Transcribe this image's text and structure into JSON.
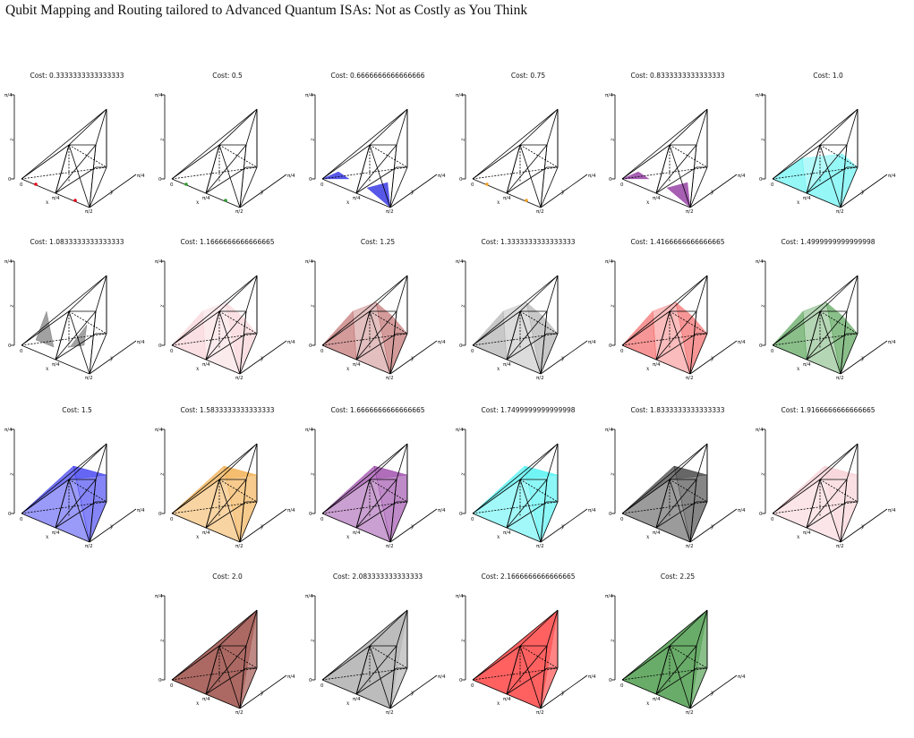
{
  "paper": {
    "title": "Qubit Mapping and Routing tailored to Advanced Quantum ISAs: Not as Costly as You Think"
  },
  "axis_labels": {
    "z_top": "π/4",
    "z_zero": "0",
    "x_origin": "0",
    "x_mid": "π/4",
    "x_end": "π/2",
    "y_end": "π/4",
    "x_name": "x",
    "y_name": "y",
    "z_name": "z"
  },
  "chart_data": {
    "type": "3d-polytope-grid",
    "panels": [
      {
        "title": "Cost: 0.3333333333333333",
        "cost": 0.3333333333333333,
        "color": "#e8001a",
        "shape": "points-red"
      },
      {
        "title": "Cost: 0.5",
        "cost": 0.5,
        "color": "#2e9a2e",
        "shape": "points-green"
      },
      {
        "title": "Cost: 0.6666666666666666",
        "cost": 0.6666666666666666,
        "color": "#2020e0",
        "shape": "base-triangles"
      },
      {
        "title": "Cost: 0.75",
        "cost": 0.75,
        "color": "#f0a020",
        "shape": "points-orange"
      },
      {
        "title": "Cost: 0.8333333333333333",
        "cost": 0.8333333333333333,
        "color": "#8a2a9a",
        "shape": "base-triangles"
      },
      {
        "title": "Cost: 1.0",
        "cost": 1.0,
        "color": "#40f0f0",
        "shape": "tall-wedges"
      },
      {
        "title": "Cost: 1.0833333333333333",
        "cost": 1.0833333333333333,
        "color": "#444444",
        "shape": "slivers"
      },
      {
        "title": "Cost: 1.1666666666666665",
        "cost": 1.1666666666666665,
        "color": "#f6c6cc",
        "shape": "wide-wedges"
      },
      {
        "title": "Cost: 1.25",
        "cost": 1.25,
        "color": "#b04848",
        "shape": "wide-wedges"
      },
      {
        "title": "Cost: 1.3333333333333333",
        "cost": 1.3333333333333333,
        "color": "#9a9a9a",
        "shape": "wide-wedges"
      },
      {
        "title": "Cost: 1.4166666666666665",
        "cost": 1.4166666666666665,
        "color": "#f04040",
        "shape": "wide-wedges"
      },
      {
        "title": "Cost: 1.4999999999999998",
        "cost": 1.4999999999999998,
        "color": "#2a8a2a",
        "shape": "wide-wedges"
      },
      {
        "title": "Cost: 1.5",
        "cost": 1.5,
        "color": "#2020f0",
        "shape": "solid"
      },
      {
        "title": "Cost: 1.5833333333333333",
        "cost": 1.5833333333333333,
        "color": "#f0a030",
        "shape": "solid"
      },
      {
        "title": "Cost: 1.6666666666666665",
        "cost": 1.6666666666666665,
        "color": "#8a2a9a",
        "shape": "solid"
      },
      {
        "title": "Cost: 1.7499999999999998",
        "cost": 1.7499999999999998,
        "color": "#30f0f0",
        "shape": "solid"
      },
      {
        "title": "Cost: 1.8333333333333333",
        "cost": 1.8333333333333333,
        "color": "#222222",
        "shape": "solid"
      },
      {
        "title": "Cost: 1.9166666666666665",
        "cost": 1.9166666666666665,
        "color": "#f6c6cc",
        "shape": "solid"
      },
      {
        "title": "Cost: 2.0",
        "cost": 2.0,
        "color": "#8a2a22",
        "shape": "full"
      },
      {
        "title": "Cost: 2.083333333333333",
        "cost": 2.083333333333333,
        "color": "#a0a0a0",
        "shape": "full"
      },
      {
        "title": "Cost: 2.1666666666666665",
        "cost": 2.1666666666666665,
        "color": "#ff2020",
        "shape": "full"
      },
      {
        "title": "Cost: 2.25",
        "cost": 2.25,
        "color": "#2a8a2a",
        "shape": "full"
      }
    ]
  }
}
